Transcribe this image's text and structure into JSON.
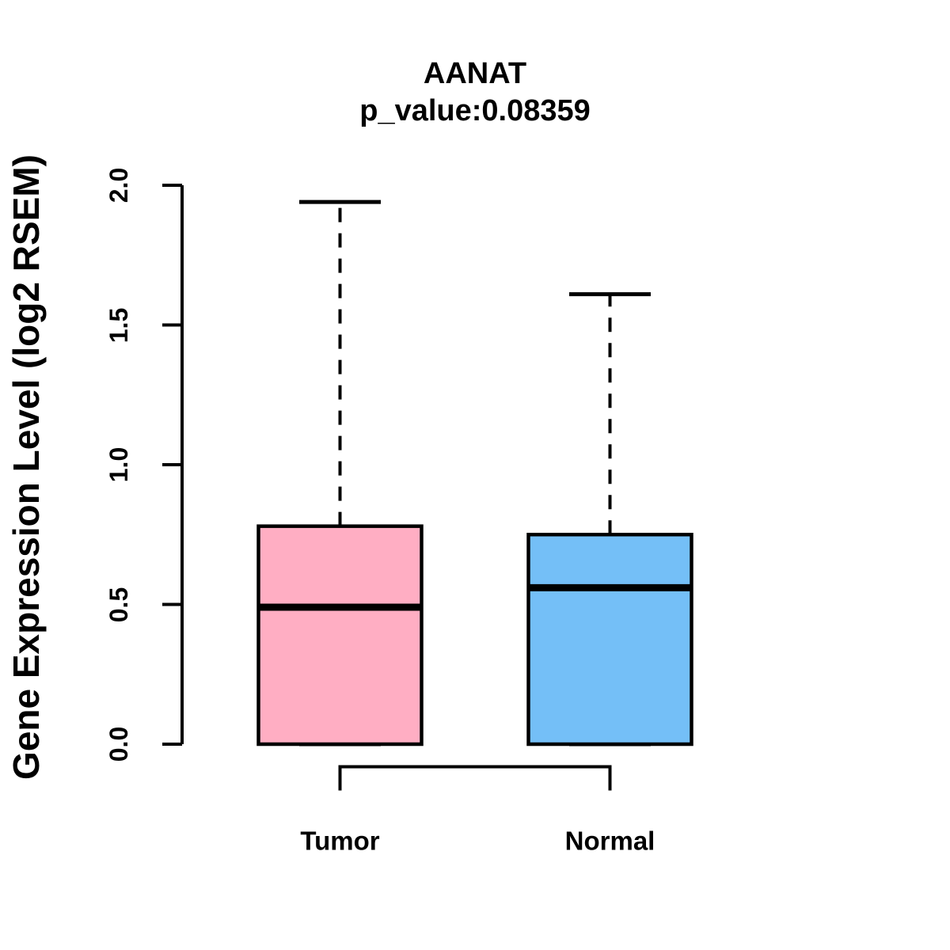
{
  "figure": {
    "title": "AANAT",
    "subtitle": "p_value:0.08359"
  },
  "colors": {
    "tumor_fill": "#FFAEC3",
    "normal_fill": "#74BFF7",
    "stroke": "#000000",
    "background": "#FFFFFF"
  },
  "chart_data": {
    "type": "boxplot",
    "title": "AANAT",
    "subtitle": "p_value:0.08359",
    "ylabel": "Gene Expression Level (log2 RSEM)",
    "xlabel": "",
    "categories": [
      "Tumor",
      "Normal"
    ],
    "series": [
      {
        "name": "Tumor",
        "min": 0.0,
        "q1": 0.0,
        "median": 0.49,
        "q3": 0.78,
        "max": 1.94,
        "color": "#FFAEC3"
      },
      {
        "name": "Normal",
        "min": 0.0,
        "q1": 0.0,
        "median": 0.56,
        "q3": 0.75,
        "max": 1.61,
        "color": "#74BFF7"
      }
    ],
    "ylim": [
      0.0,
      2.0
    ],
    "yticks": [
      0.0,
      0.5,
      1.0,
      1.5,
      2.0
    ],
    "ytick_labels": [
      "0.0",
      "0.5",
      "1.0",
      "1.5",
      "2.0"
    ],
    "whisker_style": "dashed",
    "grid": false,
    "legend": "none",
    "comparison_bracket": {
      "between": [
        "Tumor",
        "Normal"
      ]
    }
  }
}
